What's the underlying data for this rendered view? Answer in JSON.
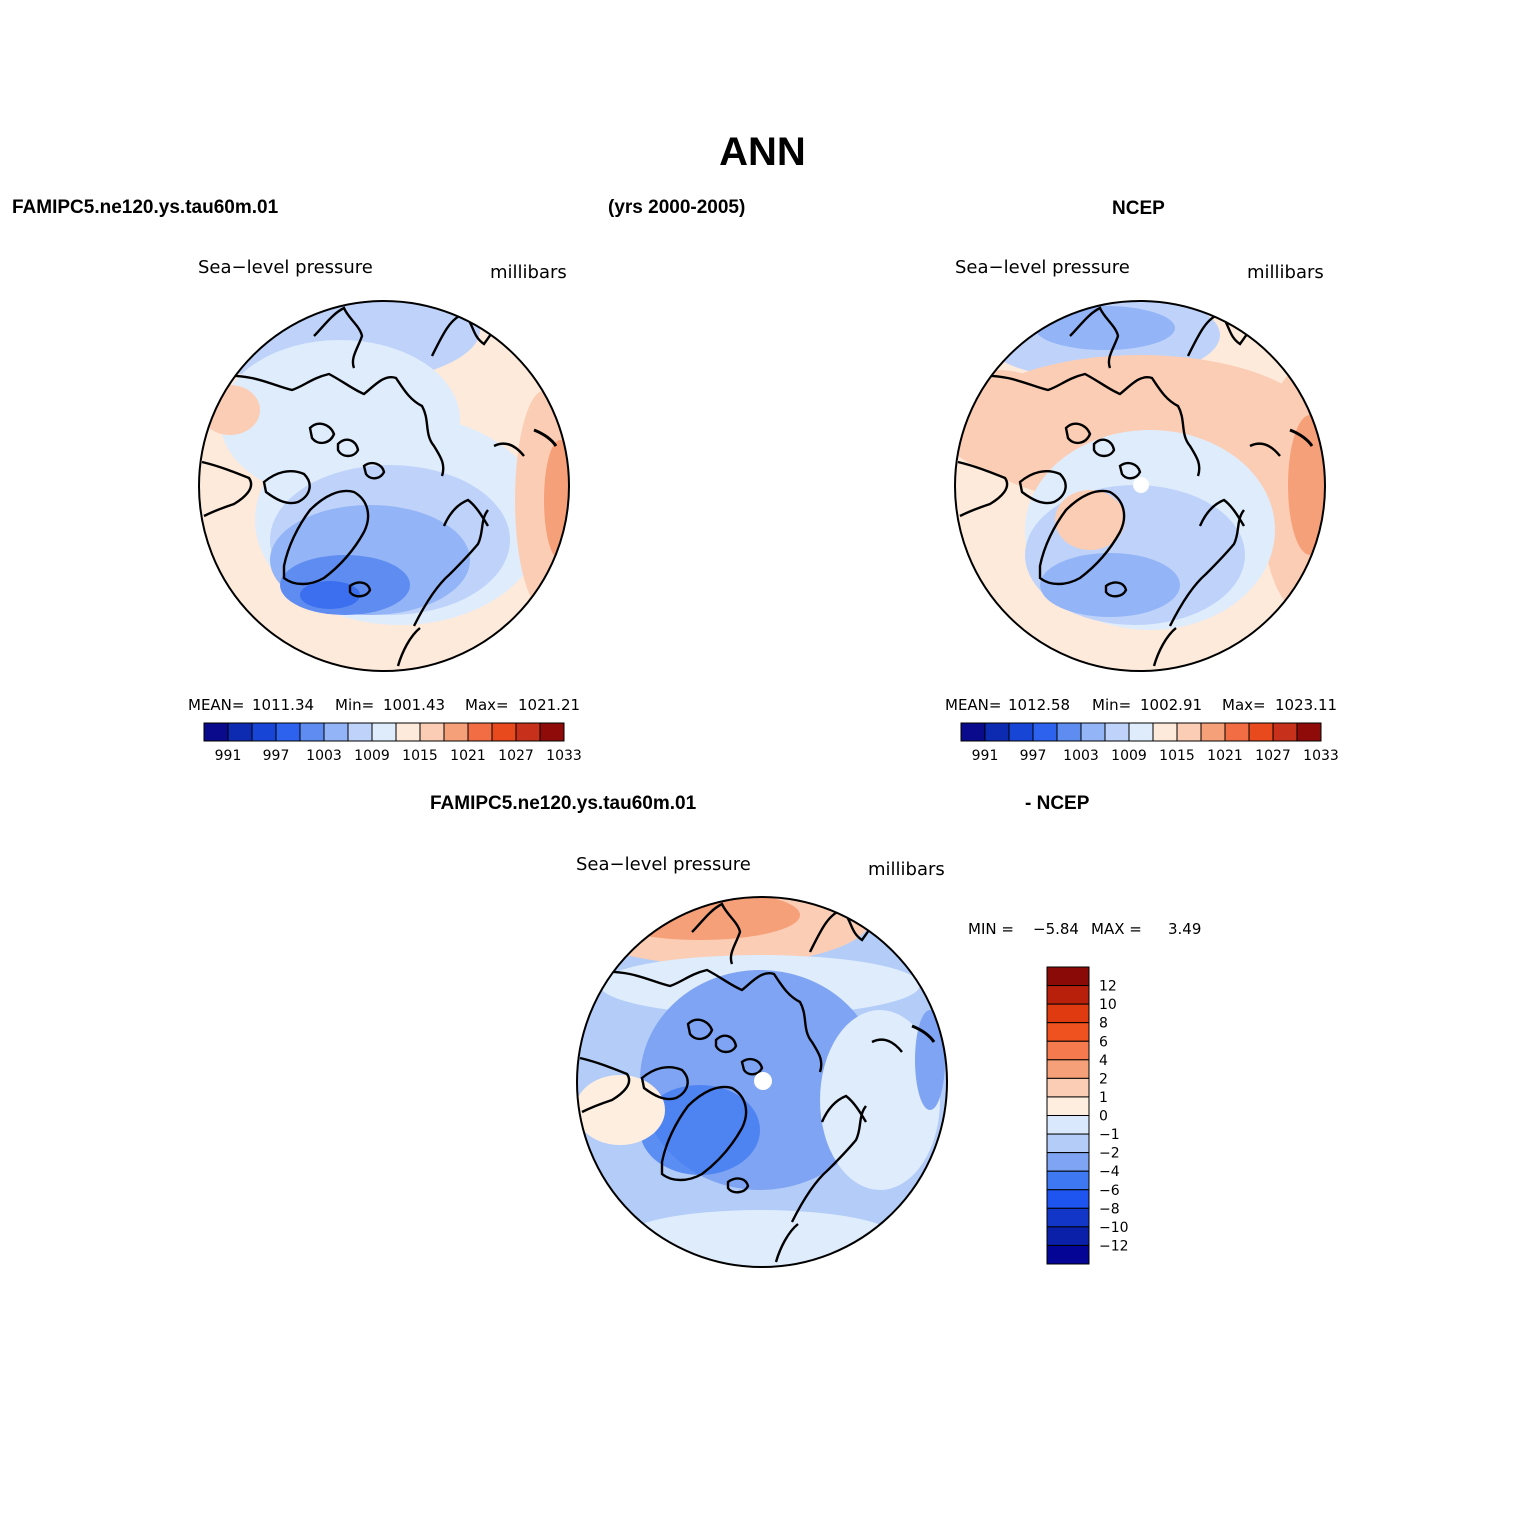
{
  "page": {
    "title": "ANN",
    "left_header": "FAMIPC5.ne120.ys.tau60m.01",
    "center_header": "(yrs 2000-2005)",
    "right_header": "NCEP",
    "diff_header_left": "FAMIPC5.ne120.ys.tau60m.01",
    "diff_header_right": "- NCEP"
  },
  "panels": [
    {
      "id": "model",
      "variable": "Sea−level pressure",
      "units": "millibars",
      "stats": {
        "mean_label": "MEAN=",
        "mean": "1011.34",
        "min_label": "Min=",
        "min": "1001.43",
        "max_label": "Max=",
        "max": "1021.21"
      }
    },
    {
      "id": "ncep",
      "variable": "Sea−level pressure",
      "units": "millibars",
      "stats": {
        "mean_label": "MEAN=",
        "mean": "1012.58",
        "min_label": "Min=",
        "min": "1002.91",
        "max_label": "Max=",
        "max": "1023.11"
      }
    },
    {
      "id": "difference",
      "variable": "Sea−level pressure",
      "units": "millibars",
      "stats": {
        "min_label": "MIN =",
        "min": "−5.84",
        "max_label": "MAX =",
        "max": "3.49"
      }
    }
  ],
  "colorbars": {
    "absolute": {
      "colors": [
        "#0a0a8c",
        "#0d2bb0",
        "#1746d6",
        "#2c62ee",
        "#5e8cf0",
        "#93b4f6",
        "#bfd3fa",
        "#dfecfc",
        "#fdeadb",
        "#fbcdb4",
        "#f6a079",
        "#f36d44",
        "#e94a1d",
        "#c7301a",
        "#8f0b09"
      ],
      "tick_labels": [
        "991",
        "997",
        "1003",
        "1009",
        "1015",
        "1021",
        "1027",
        "1033"
      ]
    },
    "difference": {
      "colors": [
        "#050595",
        "#0a20a8",
        "#1236c7",
        "#1e54f0",
        "#3e78f2",
        "#7fa4f3",
        "#b3cdf8",
        "#d9e8fc",
        "#fdeee0",
        "#fbcdb4",
        "#f6a079",
        "#f57a4d",
        "#f0521f",
        "#df3a10",
        "#b9200c",
        "#8a0a08"
      ],
      "tick_labels": [
        "12",
        "10",
        "8",
        "6",
        "4",
        "2",
        "1",
        "0",
        "−1",
        "−2",
        "−4",
        "−6",
        "−8",
        "−10",
        "−12"
      ]
    }
  }
}
